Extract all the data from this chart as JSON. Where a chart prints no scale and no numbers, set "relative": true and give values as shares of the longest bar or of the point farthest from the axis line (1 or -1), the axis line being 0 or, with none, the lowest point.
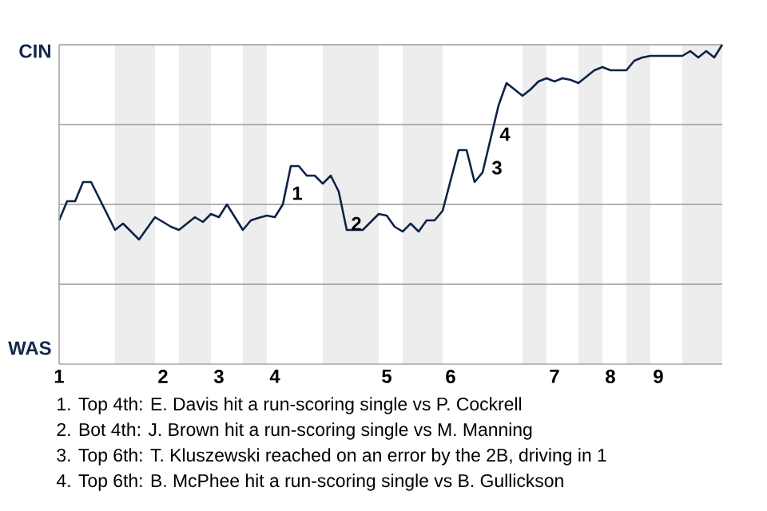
{
  "chart_data": {
    "type": "line",
    "relative": true,
    "categories": [
      "1",
      null,
      null,
      null,
      null,
      null,
      null,
      null,
      null,
      null,
      null,
      null,
      null,
      "2",
      null,
      null,
      null,
      null,
      null,
      null,
      "3",
      null,
      null,
      null,
      null,
      null,
      null,
      "4",
      null,
      null,
      null,
      null,
      null,
      null,
      null,
      null,
      null,
      null,
      null,
      null,
      null,
      "5",
      null,
      null,
      null,
      null,
      null,
      null,
      null,
      "6",
      null,
      null,
      null,
      null,
      null,
      null,
      null,
      null,
      null,
      null,
      null,
      null,
      "7",
      null,
      null,
      null,
      null,
      null,
      null,
      "8",
      null,
      null,
      null,
      null,
      null,
      "9",
      null,
      null,
      null,
      null,
      null,
      null,
      null,
      null
    ],
    "series": [
      {
        "color": "#0d2247",
        "values": [
          0.45,
          0.51,
          0.51,
          0.57,
          0.57,
          0.52,
          0.47,
          0.42,
          0.44,
          0.415,
          0.39,
          0.425,
          0.46,
          0.445,
          0.43,
          0.42,
          0.44,
          0.46,
          0.445,
          0.47,
          0.46,
          0.5,
          0.46,
          0.42,
          0.45,
          0.458,
          0.465,
          0.46,
          0.5,
          0.62,
          0.62,
          0.59,
          0.59,
          0.565,
          0.59,
          0.54,
          0.42,
          0.42,
          0.42,
          0.445,
          0.47,
          0.465,
          0.43,
          0.415,
          0.44,
          0.415,
          0.45,
          0.45,
          0.48,
          0.575,
          0.67,
          0.67,
          0.57,
          0.6,
          0.705,
          0.81,
          0.88,
          0.86,
          0.84,
          0.86,
          0.885,
          0.895,
          0.885,
          0.895,
          0.89,
          0.88,
          0.9,
          0.92,
          0.93,
          0.92,
          0.92,
          0.92,
          0.95,
          0.96,
          0.965,
          0.965,
          0.965,
          0.965,
          0.965,
          0.98,
          0.96,
          0.98,
          0.96,
          1
        ]
      }
    ],
    "ref_lines": [
      {
        "axis": "y",
        "value": 0.25,
        "color": "#999999"
      },
      {
        "axis": "y",
        "value": 0.5,
        "color": "#999999"
      },
      {
        "axis": "y",
        "value": 0.75,
        "color": "#999999"
      },
      {
        "axis": "y",
        "value": 1,
        "color": "#999999"
      }
    ],
    "annotations": [
      "CIN",
      "WAS",
      "1",
      "2",
      "3",
      "4",
      "1. Top 4th: E. Davis hit a run-scoring single vs P. Cockrell",
      "2. Bot 4th: J. Brown hit a run-scoring single vs M. Manning",
      "3. Top 6th: T. Kluszewski reached on an error by the 2B, driving in 1",
      "4. Top 6th: B. McPhee hit a run-scoring single vs B. Gullickson"
    ]
  }
}
